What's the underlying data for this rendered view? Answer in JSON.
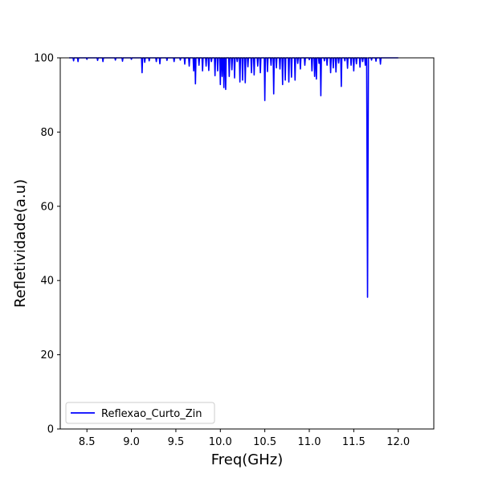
{
  "chart_data": {
    "type": "line",
    "xlabel": "Freq(GHz)",
    "ylabel": "Refletividade(a.u)",
    "xlim": [
      8.2,
      12.4
    ],
    "ylim": [
      0,
      100
    ],
    "x_ticks": [
      8.5,
      9.0,
      9.5,
      10.0,
      10.5,
      11.0,
      11.5,
      12.0
    ],
    "x_tick_labels": [
      "8.5",
      "9.0",
      "9.5",
      "10.0",
      "10.5",
      "11.0",
      "11.5",
      "12.0"
    ],
    "y_ticks": [
      0,
      20,
      40,
      60,
      80,
      100
    ],
    "y_tick_labels": [
      "0",
      "20",
      "40",
      "60",
      "80",
      "100"
    ],
    "grid": false,
    "legend_position": "lower-left",
    "series": [
      {
        "name": "Reflexao_Curto_Zin",
        "color": "#0000ff",
        "x_range": [
          8.3,
          12.0
        ],
        "baseline": 100,
        "dips": [
          [
            8.35,
            99.2
          ],
          [
            8.4,
            99.0
          ],
          [
            8.5,
            99.6
          ],
          [
            8.62,
            99.3
          ],
          [
            8.68,
            99.0
          ],
          [
            8.82,
            99.4
          ],
          [
            8.9,
            99.1
          ],
          [
            9.0,
            99.6
          ],
          [
            9.12,
            96.0
          ],
          [
            9.15,
            98.8
          ],
          [
            9.2,
            99.2
          ],
          [
            9.28,
            99.0
          ],
          [
            9.32,
            98.4
          ],
          [
            9.4,
            99.3
          ],
          [
            9.48,
            99.0
          ],
          [
            9.55,
            99.4
          ],
          [
            9.6,
            98.3
          ],
          [
            9.65,
            97.8
          ],
          [
            9.7,
            96.5
          ],
          [
            9.72,
            93.0
          ],
          [
            9.76,
            98.0
          ],
          [
            9.8,
            96.5
          ],
          [
            9.84,
            97.8
          ],
          [
            9.87,
            96.6
          ],
          [
            9.9,
            99.0
          ],
          [
            9.94,
            95.2
          ],
          [
            9.97,
            96.5
          ],
          [
            10.0,
            92.8
          ],
          [
            10.02,
            95.0
          ],
          [
            10.04,
            92.0
          ],
          [
            10.06,
            91.5
          ],
          [
            10.1,
            95.0
          ],
          [
            10.13,
            96.8
          ],
          [
            10.16,
            94.6
          ],
          [
            10.19,
            99.0
          ],
          [
            10.22,
            93.5
          ],
          [
            10.25,
            94.0
          ],
          [
            10.28,
            93.3
          ],
          [
            10.31,
            97.6
          ],
          [
            10.35,
            96.0
          ],
          [
            10.38,
            95.4
          ],
          [
            10.42,
            97.8
          ],
          [
            10.45,
            96.0
          ],
          [
            10.5,
            88.5
          ],
          [
            10.53,
            96.3
          ],
          [
            10.57,
            98.0
          ],
          [
            10.6,
            90.3
          ],
          [
            10.63,
            97.3
          ],
          [
            10.67,
            97.0
          ],
          [
            10.7,
            92.8
          ],
          [
            10.73,
            94.0
          ],
          [
            10.77,
            93.5
          ],
          [
            10.8,
            94.8
          ],
          [
            10.84,
            94.0
          ],
          [
            10.87,
            98.5
          ],
          [
            10.9,
            97.0
          ],
          [
            10.95,
            98.0
          ],
          [
            11.0,
            99.5
          ],
          [
            11.03,
            96.5
          ],
          [
            11.06,
            95.0
          ],
          [
            11.08,
            94.3
          ],
          [
            11.11,
            98.5
          ],
          [
            11.13,
            89.8
          ],
          [
            11.17,
            99.2
          ],
          [
            11.2,
            98.0
          ],
          [
            11.24,
            96.0
          ],
          [
            11.27,
            97.3
          ],
          [
            11.3,
            96.2
          ],
          [
            11.33,
            98.6
          ],
          [
            11.36,
            92.3
          ],
          [
            11.4,
            99.2
          ],
          [
            11.43,
            97.2
          ],
          [
            11.47,
            98.0
          ],
          [
            11.5,
            96.5
          ],
          [
            11.53,
            98.4
          ],
          [
            11.57,
            97.5
          ],
          [
            11.6,
            99.0
          ],
          [
            11.63,
            98.0
          ],
          [
            11.655,
            35.5
          ],
          [
            11.7,
            99.4
          ],
          [
            11.75,
            99.1
          ],
          [
            11.8,
            98.3
          ]
        ]
      }
    ]
  }
}
